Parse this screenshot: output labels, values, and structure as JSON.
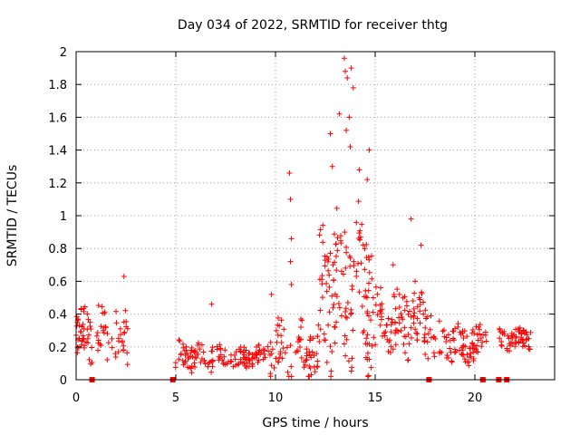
{
  "chart_data": {
    "type": "scatter",
    "title": "Day 034 of 2022, SRMTID for receiver thtg",
    "xlabel": "GPS time / hours",
    "ylabel": "SRMTID / TECUs",
    "xlim": [
      0,
      24
    ],
    "ylim": [
      0,
      2
    ],
    "xticks": [
      0,
      5,
      10,
      15,
      20
    ],
    "yticks": [
      0,
      0.2,
      0.4,
      0.6,
      0.8,
      1,
      1.2,
      1.4,
      1.6,
      1.8,
      2
    ],
    "grid": true,
    "marker": "plus",
    "color": "#ff0000",
    "zero_markers": [
      0.8,
      4.85,
      17.7,
      20.4,
      21.2,
      21.6
    ],
    "segments": [
      {
        "start": 0.0,
        "end": 2.6,
        "samples": 90,
        "base": 0.28,
        "spread": 0.16,
        "spikes": [
          [
            2.4,
            0.63
          ]
        ]
      },
      {
        "start": 4.95,
        "end": 6.9,
        "samples": 60,
        "base": 0.15,
        "spread": 0.08,
        "spikes": [
          [
            6.8,
            0.46
          ]
        ]
      },
      {
        "start": 6.9,
        "end": 9.6,
        "samples": 80,
        "base": 0.13,
        "spread": 0.06,
        "spikes": []
      },
      {
        "start": 9.6,
        "end": 12.2,
        "samples": 80,
        "base": 0.18,
        "spread": 0.15,
        "spikes": [
          [
            9.8,
            0.52
          ],
          [
            10.7,
            1.26
          ],
          [
            10.75,
            1.1
          ],
          [
            10.8,
            0.86
          ],
          [
            10.75,
            0.72
          ],
          [
            10.8,
            0.58
          ]
        ]
      },
      {
        "start": 12.2,
        "end": 14.9,
        "samples": 140,
        "base": 0.55,
        "spread": 0.4,
        "spikes": [
          [
            12.75,
            1.5
          ],
          [
            12.85,
            1.3
          ],
          [
            13.2,
            1.62
          ],
          [
            13.45,
            1.96
          ],
          [
            13.5,
            1.88
          ],
          [
            13.6,
            1.84
          ],
          [
            13.55,
            1.52
          ],
          [
            13.8,
            1.9
          ],
          [
            13.9,
            1.78
          ],
          [
            13.7,
            1.6
          ],
          [
            13.75,
            1.42
          ],
          [
            14.2,
            1.28
          ],
          [
            14.7,
            1.4
          ],
          [
            14.6,
            1.22
          ]
        ]
      },
      {
        "start": 14.9,
        "end": 17.8,
        "samples": 110,
        "base": 0.35,
        "spread": 0.18,
        "spikes": [
          [
            15.9,
            0.7
          ],
          [
            16.8,
            0.98
          ],
          [
            17.3,
            0.82
          ],
          [
            17.0,
            0.6
          ]
        ]
      },
      {
        "start": 17.8,
        "end": 20.6,
        "samples": 90,
        "base": 0.22,
        "spread": 0.1,
        "spikes": []
      },
      {
        "start": 21.1,
        "end": 22.8,
        "samples": 60,
        "base": 0.25,
        "spread": 0.06,
        "spikes": []
      }
    ]
  }
}
